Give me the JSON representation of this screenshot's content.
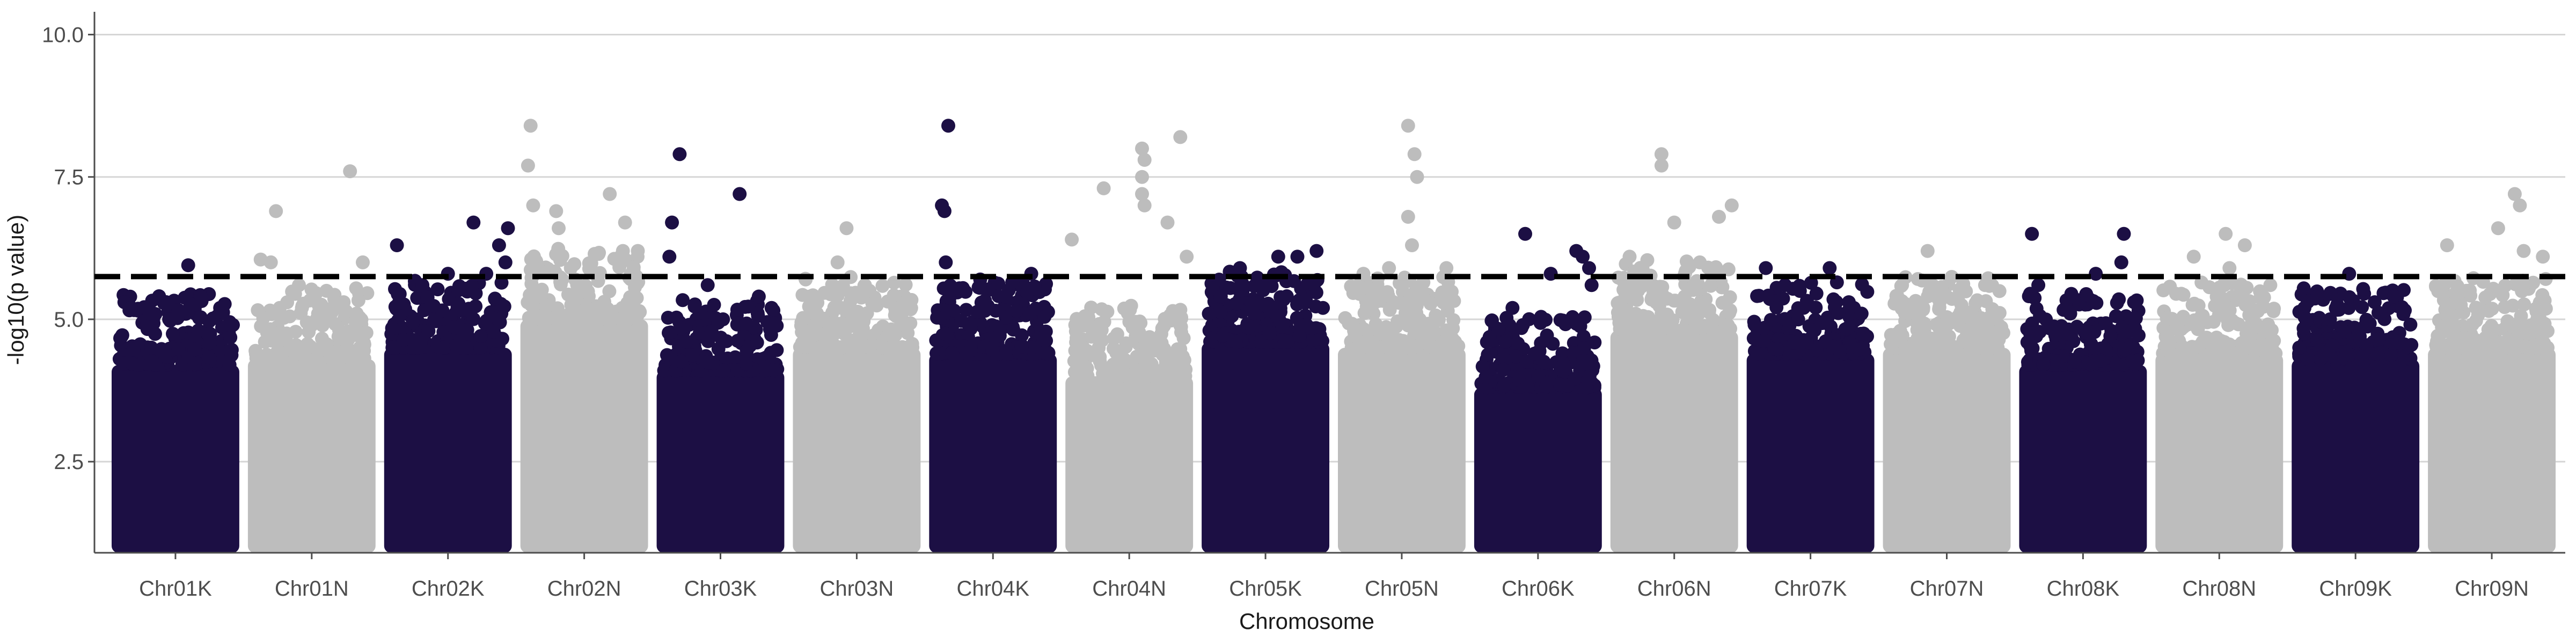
{
  "chart_data": {
    "type": "scatter",
    "subtype": "manhattan",
    "title": "",
    "xlabel": "Chromosome",
    "ylabel": "-log10(p value)",
    "ylim": [
      0.9,
      10.4
    ],
    "yticks": [
      2.5,
      5.0,
      7.5,
      10.0
    ],
    "ytick_labels": [
      "2.5",
      "5.0",
      "7.5",
      "10.0"
    ],
    "threshold": 5.75,
    "threshold_style": "dashed",
    "grid": "horizontal-major",
    "legend": "none",
    "colors": {
      "dark": "#1c0f44",
      "light": "#bdbdbd",
      "threshold": "#000000",
      "grid": "#d6d6d6",
      "axis": "#4d4d4d"
    },
    "chromosomes": [
      {
        "name": "Chr01K",
        "color": "dark",
        "dense_top": 4.2,
        "top_points": [
          [
            0.1,
            5.3
          ],
          [
            0.15,
            5.2
          ],
          [
            0.3,
            5.1
          ],
          [
            0.45,
            5.0
          ],
          [
            0.6,
            5.95
          ],
          [
            0.7,
            5.4
          ],
          [
            0.85,
            5.2
          ],
          [
            0.95,
            4.9
          ]
        ]
      },
      {
        "name": "Chr01N",
        "color": "light",
        "dense_top": 4.3,
        "top_points": [
          [
            0.1,
            6.05
          ],
          [
            0.18,
            6.0
          ],
          [
            0.22,
            6.9
          ],
          [
            0.4,
            5.6
          ],
          [
            0.55,
            5.1
          ],
          [
            0.75,
            5.3
          ],
          [
            0.8,
            7.6
          ],
          [
            0.9,
            6.0
          ]
        ]
      },
      {
        "name": "Chr02K",
        "color": "dark",
        "dense_top": 4.5,
        "top_points": [
          [
            0.1,
            6.3
          ],
          [
            0.3,
            5.6
          ],
          [
            0.5,
            5.8
          ],
          [
            0.7,
            6.7
          ],
          [
            0.8,
            5.8
          ],
          [
            0.9,
            6.3
          ],
          [
            0.95,
            6.0
          ],
          [
            0.97,
            6.6
          ]
        ]
      },
      {
        "name": "Chr02N",
        "color": "light",
        "dense_top": 5.0,
        "top_points": [
          [
            0.08,
            8.4
          ],
          [
            0.06,
            7.7
          ],
          [
            0.1,
            7.0
          ],
          [
            0.28,
            6.9
          ],
          [
            0.3,
            6.6
          ],
          [
            0.7,
            7.2
          ],
          [
            0.82,
            6.7
          ],
          [
            0.92,
            6.2
          ]
        ]
      },
      {
        "name": "Chr03K",
        "color": "dark",
        "dense_top": 4.1,
        "top_points": [
          [
            0.1,
            6.1
          ],
          [
            0.12,
            6.7
          ],
          [
            0.18,
            7.9
          ],
          [
            0.4,
            5.6
          ],
          [
            0.52,
            5.0
          ],
          [
            0.65,
            7.2
          ],
          [
            0.8,
            5.4
          ],
          [
            0.9,
            5.2
          ]
        ]
      },
      {
        "name": "Chr03N",
        "color": "light",
        "dense_top": 4.5,
        "top_points": [
          [
            0.1,
            5.7
          ],
          [
            0.35,
            6.0
          ],
          [
            0.42,
            6.6
          ],
          [
            0.6,
            5.5
          ],
          [
            0.8,
            5.2
          ]
        ]
      },
      {
        "name": "Chr04K",
        "color": "dark",
        "dense_top": 4.4,
        "top_points": [
          [
            0.1,
            7.0
          ],
          [
            0.12,
            6.9
          ],
          [
            0.15,
            8.4
          ],
          [
            0.13,
            6.0
          ],
          [
            0.4,
            5.7
          ],
          [
            0.6,
            5.4
          ],
          [
            0.8,
            5.8
          ]
        ]
      },
      {
        "name": "Chr04N",
        "color": "light",
        "dense_top": 4.0,
        "top_points": [
          [
            0.05,
            6.4
          ],
          [
            0.3,
            7.3
          ],
          [
            0.6,
            8.0
          ],
          [
            0.62,
            7.8
          ],
          [
            0.6,
            7.5
          ],
          [
            0.6,
            7.2
          ],
          [
            0.62,
            7.0
          ],
          [
            0.8,
            6.7
          ],
          [
            0.9,
            8.2
          ],
          [
            0.95,
            6.1
          ]
        ]
      },
      {
        "name": "Chr05K",
        "color": "dark",
        "dense_top": 4.6,
        "top_points": [
          [
            0.15,
            5.4
          ],
          [
            0.3,
            5.9
          ],
          [
            0.45,
            5.3
          ],
          [
            0.6,
            6.1
          ],
          [
            0.75,
            6.1
          ],
          [
            0.9,
            6.2
          ],
          [
            0.95,
            5.2
          ]
        ]
      },
      {
        "name": "Chr05N",
        "color": "light",
        "dense_top": 4.5,
        "top_points": [
          [
            0.2,
            5.8
          ],
          [
            0.4,
            5.9
          ],
          [
            0.55,
            8.4
          ],
          [
            0.6,
            7.9
          ],
          [
            0.62,
            7.5
          ],
          [
            0.55,
            6.8
          ],
          [
            0.58,
            6.3
          ],
          [
            0.85,
            5.9
          ]
        ]
      },
      {
        "name": "Chr06K",
        "color": "dark",
        "dense_top": 3.8,
        "top_points": [
          [
            0.1,
            4.6
          ],
          [
            0.3,
            5.2
          ],
          [
            0.4,
            6.5
          ],
          [
            0.6,
            5.8
          ],
          [
            0.8,
            6.2
          ],
          [
            0.85,
            6.1
          ],
          [
            0.9,
            5.9
          ],
          [
            0.92,
            5.6
          ]
        ]
      },
      {
        "name": "Chr06N",
        "color": "light",
        "dense_top": 4.8,
        "top_points": [
          [
            0.15,
            6.1
          ],
          [
            0.4,
            7.9
          ],
          [
            0.4,
            7.7
          ],
          [
            0.5,
            6.7
          ],
          [
            0.7,
            6.0
          ],
          [
            0.85,
            6.8
          ],
          [
            0.95,
            7.0
          ]
        ]
      },
      {
        "name": "Chr07K",
        "color": "dark",
        "dense_top": 4.4,
        "top_points": [
          [
            0.15,
            5.9
          ],
          [
            0.3,
            5.6
          ],
          [
            0.65,
            5.9
          ],
          [
            0.8,
            5.3
          ],
          [
            0.9,
            5.1
          ]
        ]
      },
      {
        "name": "Chr07N",
        "color": "light",
        "dense_top": 4.5,
        "top_points": [
          [
            0.15,
            5.6
          ],
          [
            0.35,
            6.2
          ],
          [
            0.5,
            5.4
          ],
          [
            0.8,
            5.6
          ]
        ]
      },
      {
        "name": "Chr08K",
        "color": "dark",
        "dense_top": 4.2,
        "top_points": [
          [
            0.1,
            6.5
          ],
          [
            0.15,
            5.6
          ],
          [
            0.4,
            5.1
          ],
          [
            0.6,
            5.8
          ],
          [
            0.8,
            6.0
          ],
          [
            0.82,
            6.5
          ],
          [
            0.9,
            5.3
          ]
        ]
      },
      {
        "name": "Chr08N",
        "color": "light",
        "dense_top": 4.4,
        "top_points": [
          [
            0.3,
            6.1
          ],
          [
            0.55,
            6.5
          ],
          [
            0.58,
            5.9
          ],
          [
            0.7,
            6.3
          ],
          [
            0.9,
            5.6
          ]
        ]
      },
      {
        "name": "Chr09K",
        "color": "dark",
        "dense_top": 4.3,
        "top_points": [
          [
            0.1,
            5.2
          ],
          [
            0.2,
            5.4
          ],
          [
            0.3,
            5.0
          ],
          [
            0.45,
            5.8
          ],
          [
            0.65,
            5.3
          ],
          [
            0.8,
            5.4
          ]
        ]
      },
      {
        "name": "Chr09N",
        "color": "light",
        "dense_top": 4.5,
        "top_points": [
          [
            0.15,
            6.3
          ],
          [
            0.3,
            5.5
          ],
          [
            0.55,
            6.6
          ],
          [
            0.68,
            7.2
          ],
          [
            0.72,
            7.0
          ],
          [
            0.75,
            6.2
          ],
          [
            0.9,
            6.1
          ]
        ]
      }
    ]
  }
}
